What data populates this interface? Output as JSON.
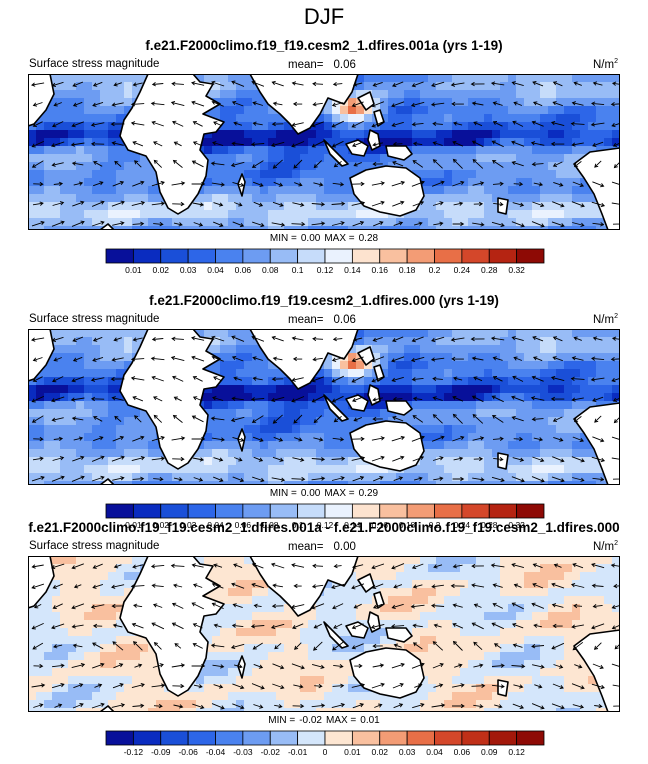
{
  "figure_title": "DJF",
  "colors": {
    "land": "#ffffff",
    "coast": "#000000",
    "arrow": "#000000"
  },
  "chart_data": [
    {
      "type": "heatmap",
      "title": "f.e21.F2000climo.f19_f19.cesm2_1.dfires.001a (yrs 1-19)",
      "variable_label": "Surface stress magnitude",
      "mean_label": "mean=",
      "mean_value": "0.06",
      "units_base": "N/m",
      "units_exp": "2",
      "min_label": "MIN =",
      "min_value": "0.00",
      "max_label": "MAX =",
      "max_value": "0.28",
      "colorbar_levels": [
        "0.01",
        "0.02",
        "0.03",
        "0.04",
        "0.06",
        "0.08",
        "0.1",
        "0.12",
        "0.14",
        "0.16",
        "0.18",
        "0.2",
        "0.24",
        "0.28",
        "0.32"
      ],
      "colorbar_colors": [
        "#08109a",
        "#0a2cc0",
        "#1a4fd8",
        "#2d66e8",
        "#4a82ef",
        "#6d9cf2",
        "#98bcf6",
        "#c6dcfa",
        "#eaf2fe",
        "#fde3cf",
        "#f9c09f",
        "#f39c75",
        "#e86f47",
        "#d4472a",
        "#b52412",
        "#8e0a05"
      ],
      "field": "stress_full"
    },
    {
      "type": "heatmap",
      "title": "f.e21.F2000climo.f19_f19.cesm2_1.dfires.000 (yrs 1-19)",
      "variable_label": "Surface stress magnitude",
      "mean_label": "mean=",
      "mean_value": "0.06",
      "units_base": "N/m",
      "units_exp": "2",
      "min_label": "MIN =",
      "min_value": "0.00",
      "max_label": "MAX =",
      "max_value": "0.29",
      "colorbar_levels": [
        "0.01",
        "0.02",
        "0.03",
        "0.04",
        "0.06",
        "0.08",
        "0.1",
        "0.12",
        "0.14",
        "0.16",
        "0.18",
        "0.2",
        "0.24",
        "0.28",
        "0.32"
      ],
      "colorbar_colors": [
        "#08109a",
        "#0a2cc0",
        "#1a4fd8",
        "#2d66e8",
        "#4a82ef",
        "#6d9cf2",
        "#98bcf6",
        "#c6dcfa",
        "#eaf2fe",
        "#fde3cf",
        "#f9c09f",
        "#f39c75",
        "#e86f47",
        "#d4472a",
        "#b52412",
        "#8e0a05"
      ],
      "field": "stress_full"
    },
    {
      "type": "heatmap",
      "title": "f.e21.F2000climo.f19_f19.cesm2_1.dfires.001a - f.e21.F2000climo.f19_f19.cesm2_1.dfires.000",
      "variable_label": "Surface stress magnitude",
      "mean_label": "mean=",
      "mean_value": "0.00",
      "units_base": "N/m",
      "units_exp": "2",
      "min_label": "MIN =",
      "min_value": "-0.02",
      "max_label": "MAX =",
      "max_value": "0.01",
      "colorbar_levels": [
        "-0.12",
        "-0.09",
        "-0.06",
        "-0.04",
        "-0.03",
        "-0.02",
        "-0.01",
        "0",
        "0.01",
        "0.02",
        "0.03",
        "0.04",
        "0.06",
        "0.09",
        "0.12"
      ],
      "colorbar_colors": [
        "#08109a",
        "#0a2cc0",
        "#1a4fd8",
        "#2d66e8",
        "#4a82ef",
        "#6d9cf2",
        "#98bcf6",
        "#d4e6fb",
        "#fde6d2",
        "#f9c09f",
        "#f39c75",
        "#e86f47",
        "#d4472a",
        "#c03018",
        "#a3180a",
        "#8e0a05"
      ],
      "field": "stress_diff"
    }
  ]
}
